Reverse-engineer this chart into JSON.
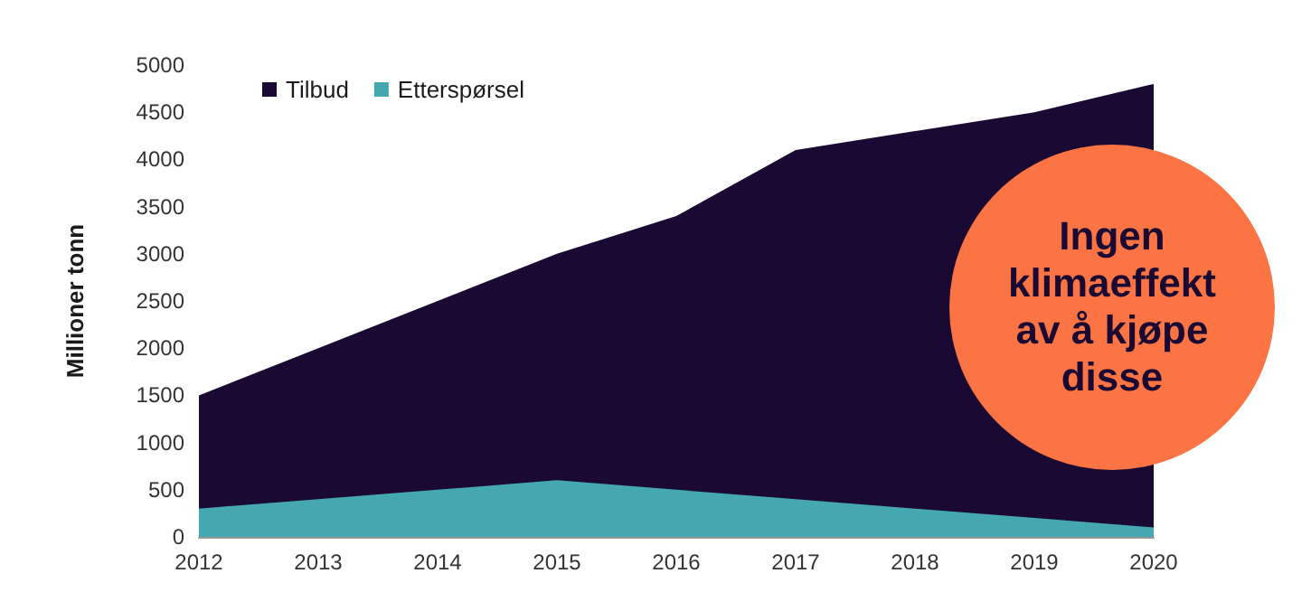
{
  "chart_data": {
    "type": "area",
    "ylabel": "Millioner tonn",
    "categories": [
      "2012",
      "2013",
      "2014",
      "2015",
      "2016",
      "2017",
      "2018",
      "2019",
      "2020"
    ],
    "series": [
      {
        "name": "Tilbud",
        "color": "#1a0a33",
        "values": [
          1500,
          2000,
          2500,
          3000,
          3400,
          4100,
          4300,
          4500,
          4800
        ]
      },
      {
        "name": "Etterspørsel",
        "color": "#45a8b0",
        "values": [
          300,
          400,
          500,
          600,
          500,
          400,
          300,
          200,
          100
        ]
      }
    ],
    "ylim": [
      0,
      5000
    ],
    "yticks": [
      0,
      500,
      1000,
      1500,
      2000,
      2500,
      3000,
      3500,
      4000,
      4500,
      5000
    ],
    "grid": false,
    "legend": "top left",
    "annotations": [
      "Ingen klimaeffekt av å kjøpe disse"
    ]
  }
}
